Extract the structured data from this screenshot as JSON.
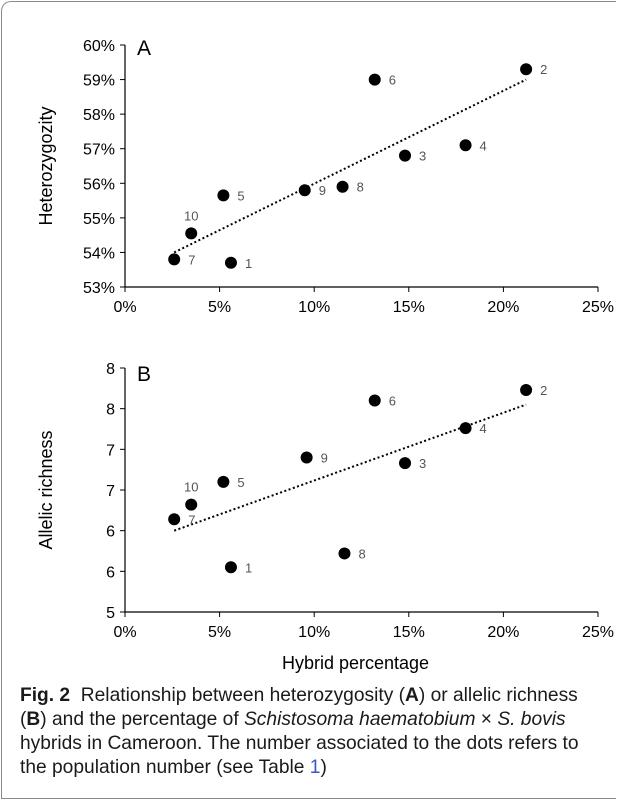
{
  "chart_data": [
    {
      "type": "scatter",
      "panel_label": "A",
      "xlabel": "",
      "ylabel": "Heterozygozity",
      "x_ticks": [
        "0%",
        "5%",
        "10%",
        "15%",
        "20%",
        "25%"
      ],
      "y_ticks": [
        "53%",
        "54%",
        "55%",
        "56%",
        "57%",
        "58%",
        "59%",
        "60%"
      ],
      "xlim": [
        0,
        25
      ],
      "ylim": [
        53,
        60
      ],
      "grid": false,
      "trendline": {
        "style": "dotted",
        "start": [
          2.6,
          54.0
        ],
        "end": [
          21.2,
          59.0
        ]
      },
      "points": [
        {
          "label": "1",
          "x": 5.6,
          "y": 53.7
        },
        {
          "label": "2",
          "x": 21.2,
          "y": 59.3
        },
        {
          "label": "3",
          "x": 14.8,
          "y": 56.8
        },
        {
          "label": "4",
          "x": 18.0,
          "y": 57.1
        },
        {
          "label": "5",
          "x": 5.2,
          "y": 55.65
        },
        {
          "label": "6",
          "x": 13.2,
          "y": 59.0
        },
        {
          "label": "7",
          "x": 2.6,
          "y": 53.8
        },
        {
          "label": "8",
          "x": 11.5,
          "y": 55.9
        },
        {
          "label": "9",
          "x": 9.5,
          "y": 55.8
        },
        {
          "label": "10",
          "x": 3.5,
          "y": 54.55
        }
      ]
    },
    {
      "type": "scatter",
      "panel_label": "B",
      "xlabel": "Hybrid percentage",
      "ylabel": "Allelic richness",
      "x_ticks": [
        "0%",
        "5%",
        "10%",
        "15%",
        "20%",
        "25%"
      ],
      "y_ticks": [
        "5",
        "6",
        "6",
        "7",
        "7",
        "8",
        "8"
      ],
      "xlim": [
        0,
        25
      ],
      "ylim": [
        5,
        8
      ],
      "grid": false,
      "trendline": {
        "style": "dotted",
        "start": [
          2.6,
          6.0
        ],
        "end": [
          21.2,
          7.55
        ]
      },
      "points": [
        {
          "label": "1",
          "x": 5.6,
          "y": 5.55
        },
        {
          "label": "2",
          "x": 21.2,
          "y": 7.73
        },
        {
          "label": "3",
          "x": 14.8,
          "y": 6.83
        },
        {
          "label": "4",
          "x": 18.0,
          "y": 7.26
        },
        {
          "label": "5",
          "x": 5.2,
          "y": 6.6
        },
        {
          "label": "6",
          "x": 13.2,
          "y": 7.6
        },
        {
          "label": "7",
          "x": 2.6,
          "y": 6.14
        },
        {
          "label": "8",
          "x": 11.6,
          "y": 5.72
        },
        {
          "label": "9",
          "x": 9.6,
          "y": 6.9
        },
        {
          "label": "10",
          "x": 3.5,
          "y": 6.32
        }
      ]
    }
  ],
  "caption": {
    "fig_label": "Fig. 2",
    "t1": "Relationship between heterozygosity (",
    "b1": "A",
    "t2": ") or allelic richness (",
    "b2": "B",
    "t3": ") and the percentage of ",
    "i1": "Schistosoma haematobium",
    "t4": " × ",
    "i2": "S. bovis",
    "t5": " hybrids in Cameroon. The number associated to the dots refers to the population number (see Table ",
    "ref": "1",
    "t6": ")"
  }
}
